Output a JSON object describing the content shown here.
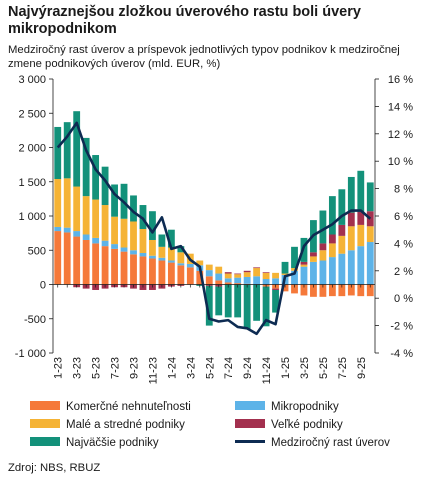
{
  "title": "Najvýraznejšou zložkou úverového rastu boli úvery mikropodnikom",
  "subtitle": "Medziročný rast úverov a príspevok jednotlivých typov podnikov k medziročnej zmene podnikových úverov (mld. EUR, %)",
  "source": "Zdroj: NBS, RBUZ",
  "legend": [
    {
      "name": "Komerčné nehnuteľnosti",
      "color": "#f5793a"
    },
    {
      "name": "Mikropodniky",
      "color": "#5db3e8"
    },
    {
      "name": "Malé a stredné podniky",
      "color": "#f5b335"
    },
    {
      "name": "Veľké podniky",
      "color": "#a3304e"
    },
    {
      "name": "Najväčšie podniky",
      "color": "#13917a"
    },
    {
      "name": "Medziročný rast úverov",
      "color": "#0d2b52"
    }
  ],
  "chart_data": {
    "type": "bar",
    "stacked": true,
    "y_left": {
      "ylim": [
        -1000,
        3000
      ],
      "ticks": [
        -1000,
        -500,
        0,
        500,
        1000,
        1500,
        2000,
        2500,
        3000
      ],
      "tick_labels": [
        "-1 000",
        "-500",
        "0",
        "500",
        "1 000",
        "1 500",
        "2 000",
        "2 500",
        "3 000"
      ]
    },
    "y_right": {
      "ylim": [
        -4,
        16
      ],
      "ticks": [
        -4,
        -2,
        0,
        2,
        4,
        6,
        8,
        10,
        12,
        14,
        16
      ],
      "tick_labels": [
        "-4 %",
        "-2 %",
        "0 %",
        "2 %",
        "4 %",
        "6 %",
        "8 %",
        "10 %",
        "12 %",
        "14 %",
        "16 %"
      ]
    },
    "x_labels": [
      "1-23",
      "3-23",
      "5-23",
      "7-23",
      "9-23",
      "11-23",
      "1-24",
      "3-24",
      "5-24",
      "7-24",
      "9-24",
      "11-24",
      "1-25",
      "3-25",
      "5-25",
      "7-25",
      "9-25"
    ],
    "months": [
      "1-23",
      "2-23",
      "3-23",
      "4-23",
      "5-23",
      "6-23",
      "7-23",
      "8-23",
      "9-23",
      "10-23",
      "11-23",
      "12-23",
      "1-24",
      "2-24",
      "3-24",
      "4-24",
      "5-24",
      "6-24",
      "7-24",
      "8-24",
      "9-24",
      "10-24",
      "11-24",
      "12-24",
      "1-25",
      "2-25",
      "3-25",
      "4-25",
      "5-25",
      "6-25",
      "7-25",
      "8-25",
      "9-25",
      "10-25"
    ],
    "series": [
      {
        "name": "Komerčné nehnuteľnosti",
        "values": [
          780,
          760,
          700,
          650,
          600,
          560,
          520,
          480,
          440,
          410,
          380,
          350,
          320,
          280,
          250,
          200,
          120,
          60,
          30,
          20,
          10,
          0,
          -30,
          -60,
          -100,
          -130,
          -160,
          -180,
          -180,
          -170,
          -170,
          -160,
          -170,
          -170
        ]
      },
      {
        "name": "Mikropodniky",
        "values": [
          60,
          70,
          80,
          80,
          80,
          80,
          70,
          60,
          60,
          50,
          40,
          40,
          30,
          30,
          50,
          80,
          90,
          100,
          60,
          80,
          100,
          120,
          80,
          90,
          140,
          200,
          260,
          330,
          350,
          400,
          450,
          500,
          560,
          620
        ]
      },
      {
        "name": "Malé a stredné podniky",
        "values": [
          700,
          720,
          650,
          560,
          560,
          520,
          400,
          420,
          420,
          350,
          230,
          160,
          190,
          160,
          150,
          70,
          80,
          100,
          70,
          50,
          70,
          120,
          90,
          80,
          20,
          40,
          30,
          80,
          150,
          200,
          260,
          350,
          310,
          230
        ]
      },
      {
        "name": "Veľké podniky",
        "values": [
          0,
          0,
          -40,
          -60,
          -80,
          -60,
          -40,
          -40,
          -60,
          -80,
          -80,
          -60,
          -30,
          -20,
          0,
          0,
          -20,
          -30,
          20,
          10,
          20,
          10,
          10,
          -20,
          0,
          0,
          40,
          60,
          100,
          130,
          160,
          200,
          190,
          220
        ]
      },
      {
        "name": "Najväčšie podniky",
        "values": [
          760,
          820,
          1100,
          850,
          650,
          560,
          470,
          510,
          380,
          350,
          420,
          180,
          260,
          90,
          0,
          -20,
          -580,
          -420,
          -480,
          -480,
          -650,
          -530,
          -580,
          -330,
          170,
          310,
          350,
          470,
          480,
          560,
          520,
          520,
          600,
          420
        ]
      },
      {
        "name": "Medziročný rast úverov",
        "type": "line",
        "axis": "right",
        "values": [
          11.0,
          11.8,
          12.8,
          10.8,
          9.4,
          8.6,
          7.6,
          7.0,
          6.3,
          5.8,
          4.8,
          5.9,
          3.6,
          3.8,
          2.8,
          2.3,
          -1.5,
          -1.7,
          -1.6,
          -2.1,
          -2.2,
          -2.6,
          -1.6,
          -1.9,
          1.6,
          1.8,
          3.8,
          4.6,
          5.0,
          5.4,
          6.0,
          6.4,
          6.4,
          5.8
        ]
      }
    ]
  }
}
